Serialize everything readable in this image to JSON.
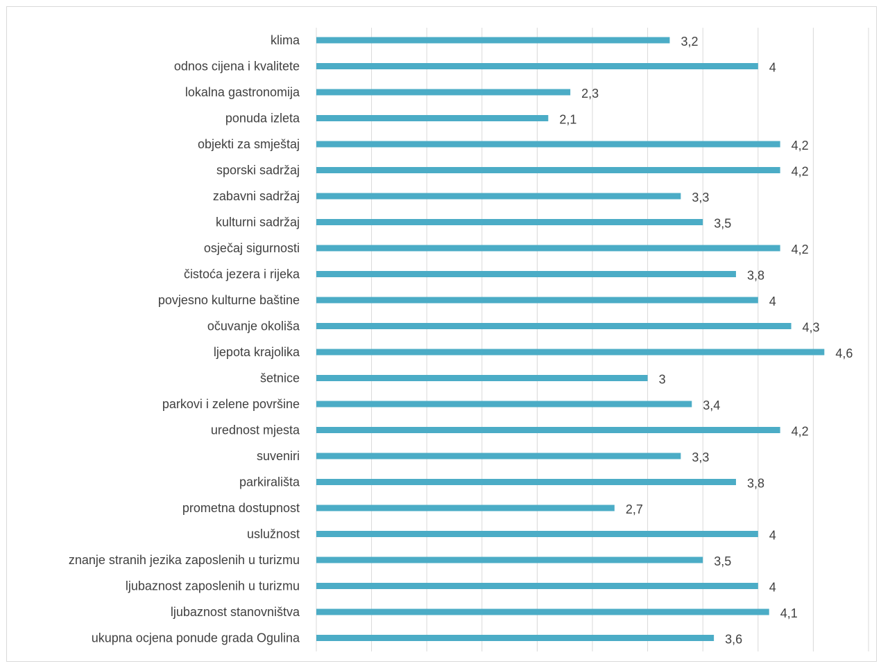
{
  "chart_data": {
    "type": "bar",
    "orientation": "horizontal",
    "categories": [
      "klima",
      "odnos cijena i kvalitete",
      "lokalna gastronomija",
      "ponuda izleta",
      "objekti za smještaj",
      "sporski sadržaj",
      "zabavni sadržaj",
      "kulturni sadržaj",
      "osječaj sigurnosti",
      "čistoća jezera i rijeka",
      "povjesno kulturne baštine",
      "očuvanje okoliša",
      "ljepota krajolika",
      "šetnice",
      "parkovi i zelene površine",
      "urednost mjesta",
      "suveniri",
      "parkirališta",
      "prometna dostupnost",
      "uslužnost",
      "znanje stranih jezika zaposlenih u turizmu",
      "ljubaznost zaposlenih u turizmu",
      "ljubaznost stanovništva",
      "ukupna ocjena ponude grada Ogulina"
    ],
    "values": [
      3.2,
      4,
      2.3,
      2.1,
      4.2,
      4.2,
      3.3,
      3.5,
      4.2,
      3.8,
      4,
      4.3,
      4.6,
      3,
      3.4,
      4.2,
      3.3,
      3.8,
      2.7,
      4,
      3.5,
      4,
      4.1,
      3.6
    ],
    "value_labels": [
      "3,2",
      "4",
      "2,3",
      "2,1",
      "4,2",
      "4,2",
      "3,3",
      "3,5",
      "4,2",
      "3,8",
      "4",
      "4,3",
      "4,6",
      "3",
      "3,4",
      "4,2",
      "3,3",
      "3,8",
      "2,7",
      "4",
      "3,5",
      "4",
      "4,1",
      "3,6"
    ],
    "xlim": [
      0,
      5
    ],
    "grid": true,
    "legend": "none",
    "bar_color": "#4bacc6"
  }
}
